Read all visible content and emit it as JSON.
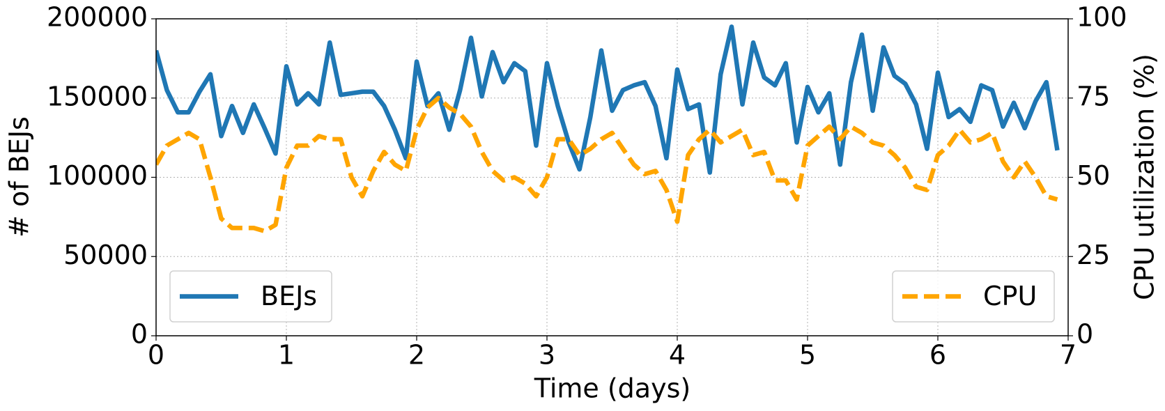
{
  "chart_data": {
    "type": "line",
    "xlabel": "Time (days)",
    "ylabel": "# of BEJs",
    "y2label": "CPU utilization (%)",
    "xlim": [
      0,
      7
    ],
    "xticks": [
      0,
      1,
      2,
      3,
      4,
      5,
      6,
      7
    ],
    "ylim": [
      0,
      200000
    ],
    "yticks": [
      0,
      50000,
      100000,
      150000,
      200000
    ],
    "y2lim": [
      0,
      100
    ],
    "y2ticks": [
      0,
      25,
      50,
      75,
      100
    ],
    "grid": true,
    "x": [
      0,
      0.083,
      0.167,
      0.25,
      0.333,
      0.417,
      0.5,
      0.583,
      0.667,
      0.75,
      0.833,
      0.917,
      1,
      1.083,
      1.167,
      1.25,
      1.333,
      1.417,
      1.5,
      1.583,
      1.667,
      1.75,
      1.833,
      1.917,
      2,
      2.083,
      2.167,
      2.25,
      2.333,
      2.417,
      2.5,
      2.583,
      2.667,
      2.75,
      2.833,
      2.917,
      3,
      3.083,
      3.167,
      3.25,
      3.333,
      3.417,
      3.5,
      3.583,
      3.667,
      3.75,
      3.833,
      3.917,
      4,
      4.083,
      4.167,
      4.25,
      4.333,
      4.417,
      4.5,
      4.583,
      4.667,
      4.75,
      4.833,
      4.917,
      5,
      5.083,
      5.167,
      5.25,
      5.333,
      5.417,
      5.5,
      5.583,
      5.667,
      5.75,
      5.833,
      5.917,
      6,
      6.083,
      6.167,
      6.25,
      6.333,
      6.417,
      6.5,
      6.583,
      6.667,
      6.75,
      6.833,
      6.917
    ],
    "series": [
      {
        "name": "BEJs",
        "color": "#1f77b4",
        "axis": "y",
        "linestyle": "solid",
        "legend_loc": "lower left",
        "values": [
          180000,
          155000,
          141000,
          141000,
          154000,
          165000,
          126000,
          145000,
          128000,
          146000,
          131000,
          115000,
          170000,
          146000,
          153000,
          146000,
          185000,
          152000,
          153000,
          154000,
          154000,
          145000,
          130000,
          112000,
          173000,
          145000,
          153000,
          130000,
          155000,
          188000,
          151000,
          179000,
          160000,
          172000,
          167000,
          120000,
          172000,
          145000,
          122000,
          105000,
          138000,
          180000,
          142000,
          155000,
          158000,
          160000,
          145000,
          112000,
          168000,
          143000,
          146000,
          103000,
          165000,
          195000,
          146000,
          185000,
          163000,
          158000,
          172000,
          122000,
          157000,
          141000,
          153000,
          108000,
          160000,
          190000,
          142000,
          182000,
          164000,
          159000,
          146000,
          118000,
          166000,
          138000,
          143000,
          135000,
          158000,
          155000,
          132000,
          147000,
          131000,
          148000,
          160000,
          117000
        ]
      },
      {
        "name": "CPU",
        "color": "#ffa500",
        "axis": "y2",
        "linestyle": "dashed",
        "legend_loc": "lower right",
        "values": [
          54,
          60,
          62,
          64,
          62,
          50,
          37,
          34,
          34,
          34,
          33,
          35,
          53,
          60,
          60,
          63,
          62,
          62,
          50,
          44,
          52,
          58,
          54,
          52,
          65,
          72,
          75,
          72,
          70,
          66,
          58,
          52,
          49,
          50,
          48,
          44,
          50,
          62,
          62,
          57,
          59,
          62,
          64,
          59,
          54,
          51,
          52,
          46,
          36,
          57,
          62,
          65,
          61,
          63,
          65,
          57,
          58,
          49,
          49,
          43,
          60,
          63,
          66,
          62,
          66,
          64,
          61,
          60,
          57,
          53,
          47,
          46,
          57,
          60,
          65,
          61,
          62,
          64,
          55,
          50,
          55,
          50,
          44,
          43
        ]
      }
    ]
  }
}
